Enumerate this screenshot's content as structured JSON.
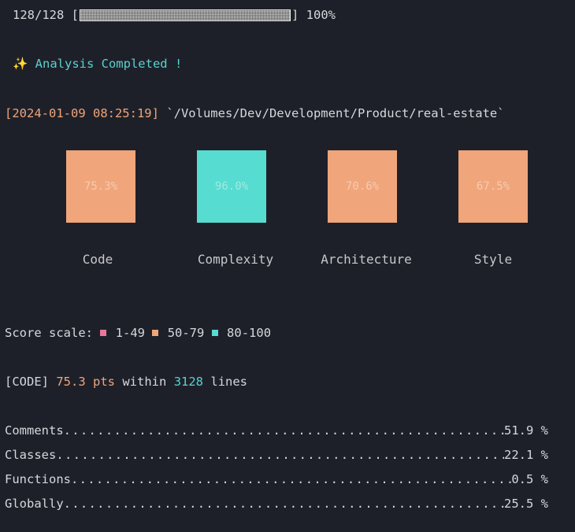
{
  "progress": {
    "count": "128/128",
    "percent": "100%",
    "fraction": 1.0
  },
  "status": {
    "icon": "sparkles-icon",
    "icon_glyph": "✨",
    "message": "Analysis Completed !"
  },
  "run": {
    "timestamp": "[2024-01-09 08:25:19]",
    "path": "`/Volumes/Dev/Development/Product/real-estate`"
  },
  "scores": [
    {
      "label": "Code",
      "value": "75.3%",
      "color": "#f0a57a"
    },
    {
      "label": "Complexity",
      "value": "96.0%",
      "color": "#56dcd0"
    },
    {
      "label": "Architecture",
      "value": "70.6%",
      "color": "#f0a57a"
    },
    {
      "label": "Style",
      "value": "67.5%",
      "color": "#f0a57a"
    }
  ],
  "scale": {
    "label": "Score scale:",
    "ranges": [
      {
        "range": "1-49",
        "color": "#e8789a"
      },
      {
        "range": "50-79",
        "color": "#f0a57a"
      },
      {
        "range": "80-100",
        "color": "#56dcd0"
      }
    ]
  },
  "code_summary": {
    "tag": "[CODE]",
    "points": "75.3 pts",
    "within": "within",
    "lines_count": "3128",
    "lines_label": "lines"
  },
  "metrics": [
    {
      "label": "Comments",
      "value": "51.9 %"
    },
    {
      "label": "Classes",
      "value": "22.1 %"
    },
    {
      "label": "Functions",
      "value": "0.5 %"
    },
    {
      "label": "Globally",
      "value": "25.5 %"
    }
  ]
}
